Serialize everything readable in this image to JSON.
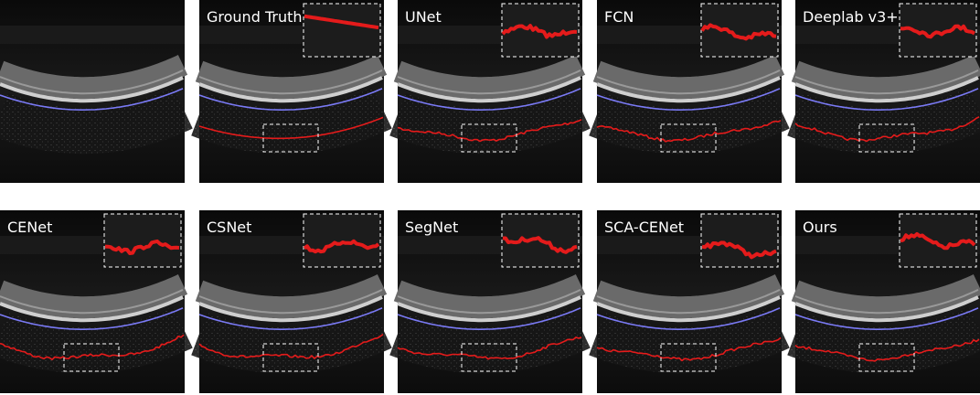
{
  "panels": [
    {
      "label": "Ground Truth"
    },
    {
      "label": "UNet"
    },
    {
      "label": "FCN"
    },
    {
      "label": "Deeplab v3+"
    },
    {
      "label": "CENet"
    },
    {
      "label": "CSNet"
    },
    {
      "label": "SegNet"
    },
    {
      "label": "SCA-CENet"
    },
    {
      "label": "Ours"
    }
  ]
}
